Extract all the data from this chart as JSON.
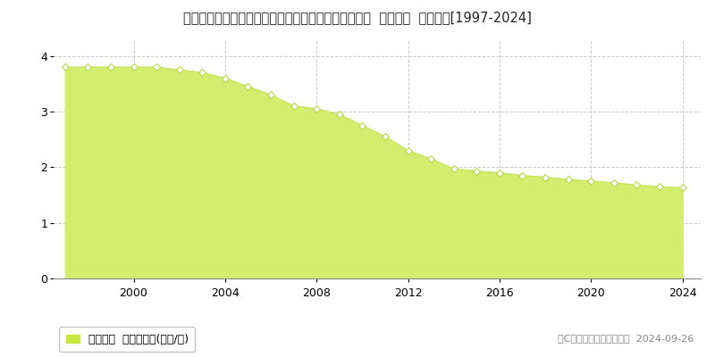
{
  "title": "青森県上北郡六戸町大字犬落瀬字権現沢１４番２０８  基準地価  地価推移[1997-2024]",
  "years": [
    1997,
    1998,
    1999,
    2000,
    2001,
    2002,
    2003,
    2004,
    2005,
    2006,
    2007,
    2008,
    2009,
    2010,
    2011,
    2012,
    2013,
    2014,
    2015,
    2016,
    2017,
    2018,
    2019,
    2020,
    2021,
    2022,
    2023,
    2024
  ],
  "values": [
    3.8,
    3.8,
    3.8,
    3.8,
    3.8,
    3.75,
    3.7,
    3.6,
    3.45,
    3.3,
    3.1,
    3.05,
    2.95,
    2.75,
    2.55,
    2.3,
    2.15,
    1.97,
    1.93,
    1.9,
    1.85,
    1.82,
    1.78,
    1.75,
    1.72,
    1.68,
    1.65,
    1.63
  ],
  "fill_color": "#d4ed6e",
  "line_color": "#c8e660",
  "marker_facecolor": "#ffffff",
  "marker_edgecolor": "#b8d840",
  "background_color": "#ffffff",
  "grid_color": "#cccccc",
  "xlim": [
    1996.5,
    2024.8
  ],
  "ylim": [
    0,
    4.3
  ],
  "yticks": [
    0,
    1,
    2,
    3,
    4
  ],
  "xticks": [
    2000,
    2004,
    2008,
    2012,
    2016,
    2020,
    2024
  ],
  "legend_label": "基準地価  平均坪単価(万円/坪)",
  "legend_marker_color": "#c8e640",
  "copyright_text": "（C）土地価格ドットコム  2024-09-26",
  "title_fontsize": 10.5,
  "tick_fontsize": 9,
  "legend_fontsize": 9,
  "copyright_fontsize": 8
}
